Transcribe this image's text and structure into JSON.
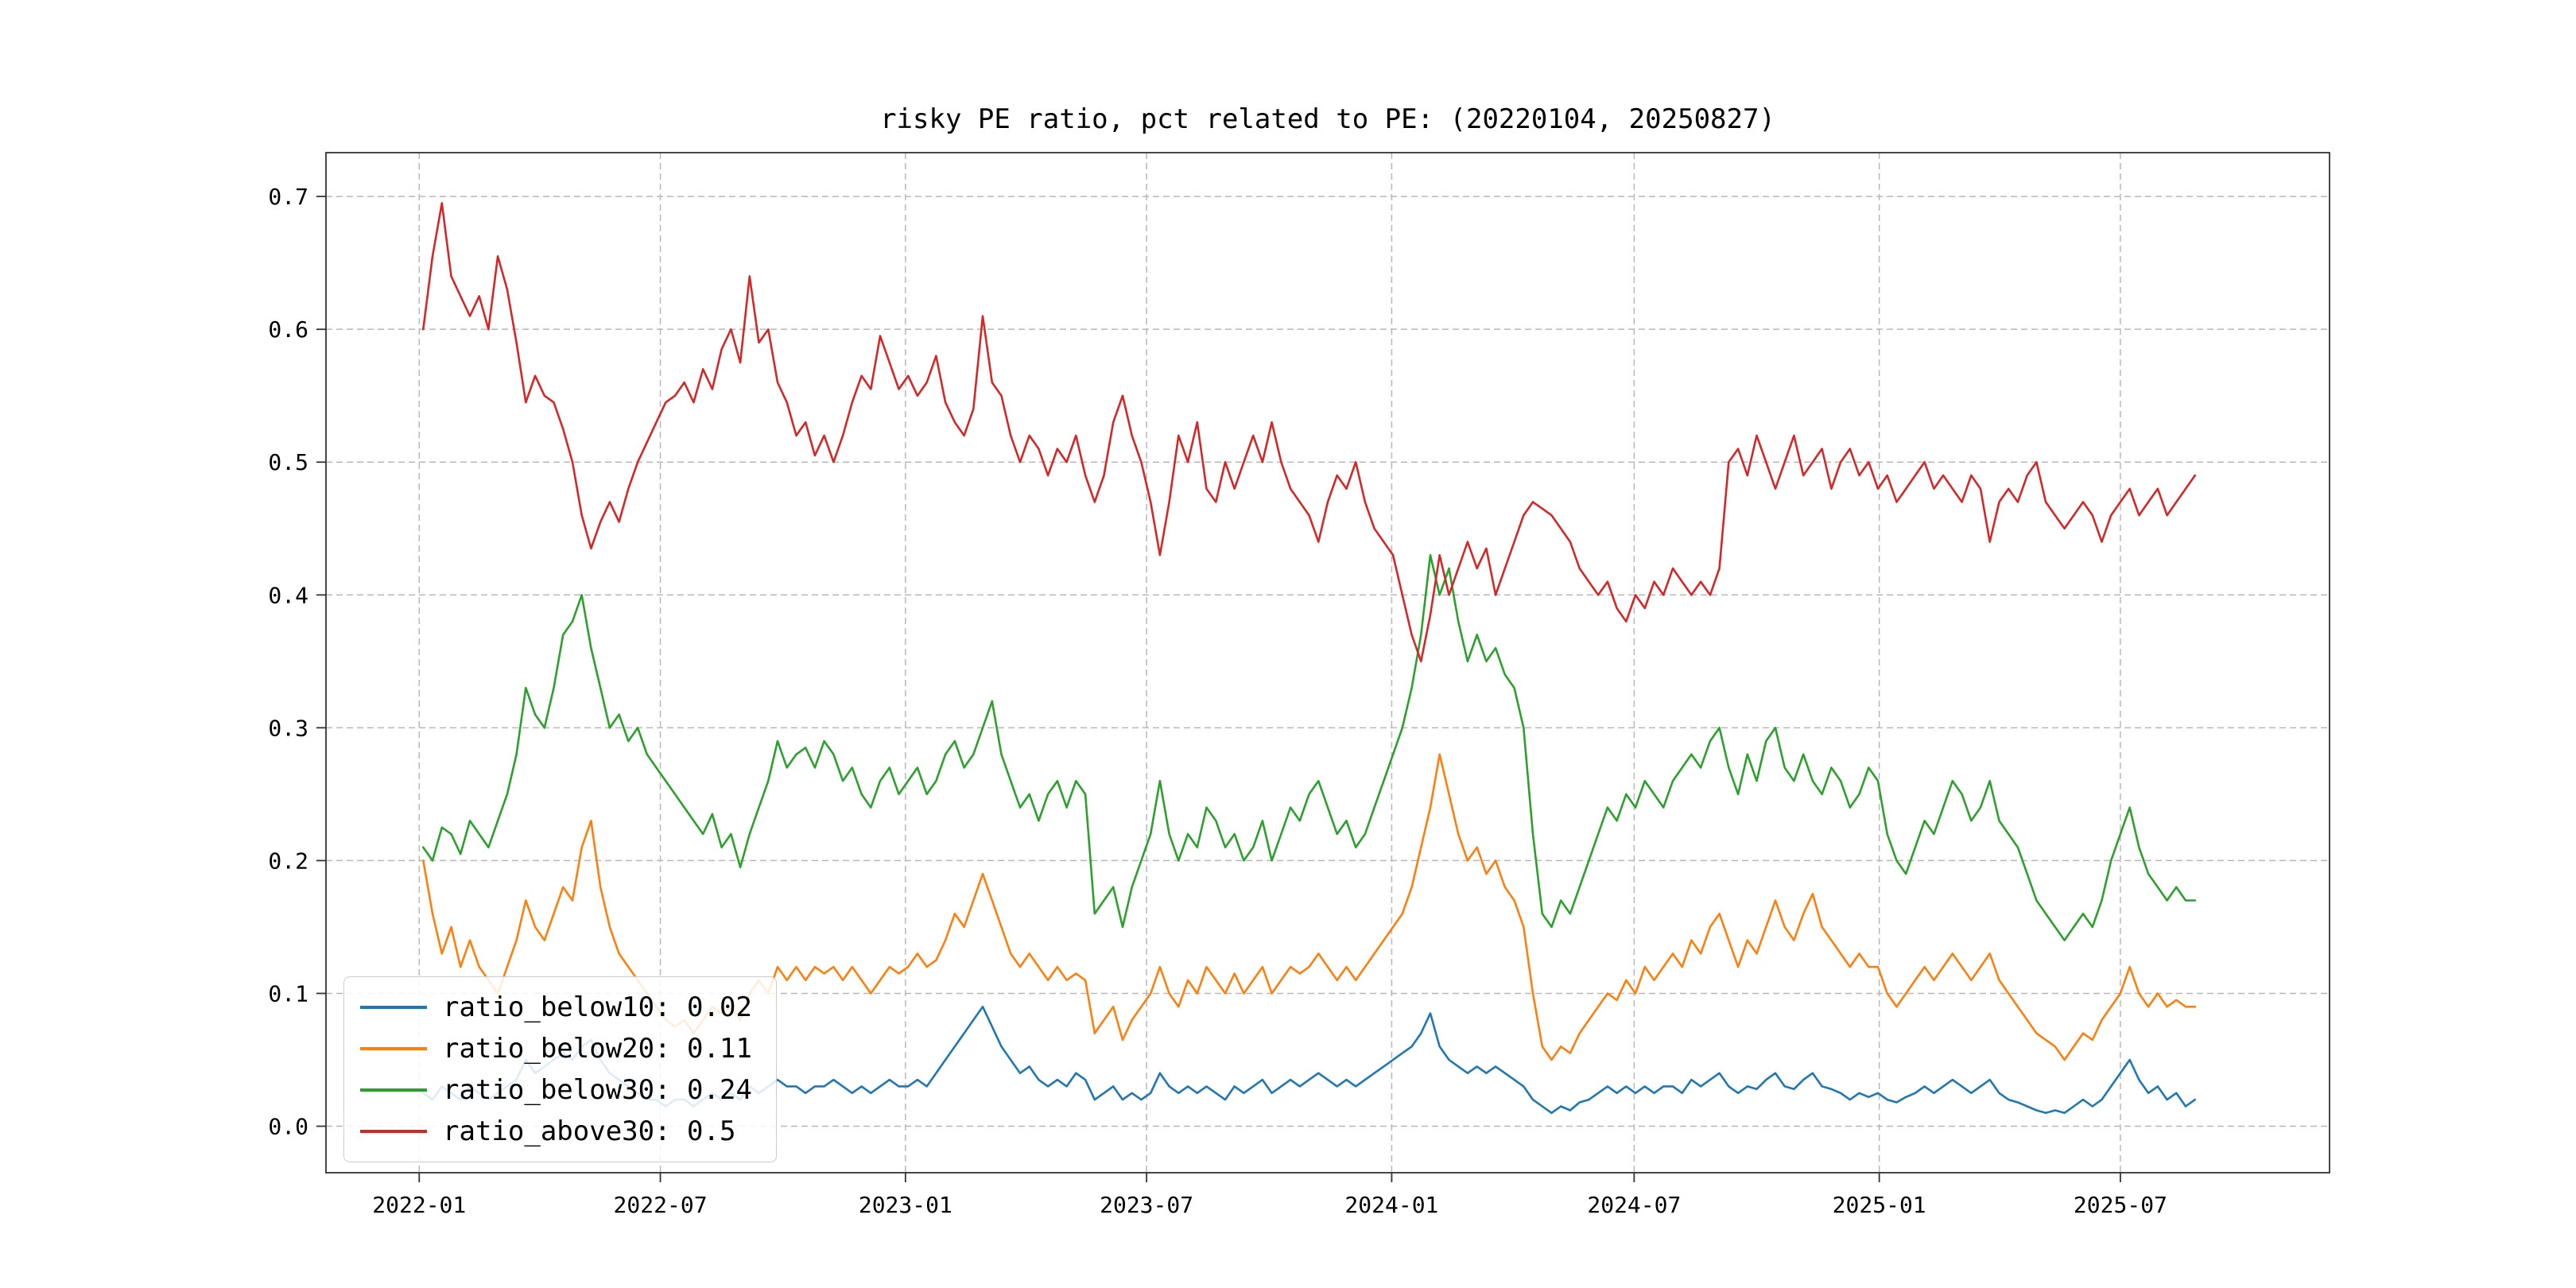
{
  "chart_data": {
    "type": "line",
    "title": "risky PE ratio, pct related to PE: (20220104, 20250827)",
    "grid": {
      "enabled": true,
      "dashed": true,
      "color": "#b8b8b8"
    },
    "legend_position": "lower-left",
    "x_unit": "days since 2022-01-01",
    "xlim": [
      -70,
      1434
    ],
    "ylim": [
      -0.035,
      0.733
    ],
    "y_ticks": [
      0.0,
      0.1,
      0.2,
      0.3,
      0.4,
      0.5,
      0.6,
      0.7
    ],
    "x_ticks": [
      {
        "day": 0,
        "label": "2022-01"
      },
      {
        "day": 181,
        "label": "2022-07"
      },
      {
        "day": 365,
        "label": "2023-01"
      },
      {
        "day": 546,
        "label": "2023-07"
      },
      {
        "day": 730,
        "label": "2024-01"
      },
      {
        "day": 912,
        "label": "2024-07"
      },
      {
        "day": 1096,
        "label": "2025-01"
      },
      {
        "day": 1277,
        "label": "2025-07"
      }
    ],
    "x": [
      3,
      10,
      17,
      24,
      31,
      38,
      45,
      52,
      59,
      66,
      73,
      80,
      87,
      94,
      101,
      108,
      115,
      122,
      129,
      136,
      143,
      150,
      157,
      164,
      171,
      178,
      185,
      192,
      199,
      206,
      213,
      220,
      227,
      234,
      241,
      248,
      255,
      262,
      269,
      276,
      283,
      290,
      297,
      304,
      311,
      318,
      325,
      332,
      339,
      346,
      353,
      360,
      367,
      374,
      381,
      388,
      395,
      402,
      409,
      416,
      423,
      430,
      437,
      444,
      451,
      458,
      465,
      472,
      479,
      486,
      493,
      500,
      507,
      514,
      521,
      528,
      535,
      542,
      549,
      556,
      563,
      570,
      577,
      584,
      591,
      598,
      605,
      612,
      619,
      626,
      633,
      640,
      647,
      654,
      661,
      668,
      675,
      682,
      689,
      696,
      703,
      710,
      717,
      724,
      731,
      738,
      745,
      752,
      759,
      766,
      773,
      780,
      787,
      794,
      801,
      808,
      815,
      822,
      829,
      836,
      843,
      850,
      857,
      864,
      871,
      878,
      885,
      892,
      899,
      906,
      913,
      920,
      927,
      934,
      941,
      948,
      955,
      962,
      969,
      976,
      983,
      990,
      997,
      1004,
      1011,
      1018,
      1025,
      1032,
      1039,
      1046,
      1053,
      1060,
      1067,
      1074,
      1081,
      1088,
      1095,
      1102,
      1109,
      1116,
      1123,
      1130,
      1137,
      1144,
      1151,
      1158,
      1165,
      1172,
      1179,
      1186,
      1193,
      1200,
      1207,
      1214,
      1221,
      1228,
      1235,
      1242,
      1249,
      1256,
      1263,
      1270,
      1277,
      1284,
      1291,
      1298,
      1305,
      1312,
      1319,
      1326,
      1333
    ],
    "series": [
      {
        "name": "ratio_below10",
        "legend_label": "ratio_below10: 0.02",
        "color": "#1f77b4",
        "values": [
          0.025,
          0.02,
          0.03,
          0.025,
          0.02,
          0.03,
          0.025,
          0.02,
          0.025,
          0.03,
          0.035,
          0.05,
          0.04,
          0.045,
          0.05,
          0.055,
          0.05,
          0.06,
          0.065,
          0.05,
          0.04,
          0.035,
          0.03,
          0.025,
          0.02,
          0.02,
          0.015,
          0.02,
          0.02,
          0.015,
          0.02,
          0.025,
          0.02,
          0.025,
          0.02,
          0.03,
          0.025,
          0.03,
          0.035,
          0.03,
          0.03,
          0.025,
          0.03,
          0.03,
          0.035,
          0.03,
          0.025,
          0.03,
          0.025,
          0.03,
          0.035,
          0.03,
          0.03,
          0.035,
          0.03,
          0.04,
          0.05,
          0.06,
          0.07,
          0.08,
          0.09,
          0.075,
          0.06,
          0.05,
          0.04,
          0.045,
          0.035,
          0.03,
          0.035,
          0.03,
          0.04,
          0.035,
          0.02,
          0.025,
          0.03,
          0.02,
          0.025,
          0.02,
          0.025,
          0.04,
          0.03,
          0.025,
          0.03,
          0.025,
          0.03,
          0.025,
          0.02,
          0.03,
          0.025,
          0.03,
          0.035,
          0.025,
          0.03,
          0.035,
          0.03,
          0.035,
          0.04,
          0.035,
          0.03,
          0.035,
          0.03,
          0.035,
          0.04,
          0.045,
          0.05,
          0.055,
          0.06,
          0.07,
          0.085,
          0.06,
          0.05,
          0.045,
          0.04,
          0.045,
          0.04,
          0.045,
          0.04,
          0.035,
          0.03,
          0.02,
          0.015,
          0.01,
          0.015,
          0.012,
          0.018,
          0.02,
          0.025,
          0.03,
          0.025,
          0.03,
          0.025,
          0.03,
          0.025,
          0.03,
          0.03,
          0.025,
          0.035,
          0.03,
          0.035,
          0.04,
          0.03,
          0.025,
          0.03,
          0.028,
          0.035,
          0.04,
          0.03,
          0.028,
          0.035,
          0.04,
          0.03,
          0.028,
          0.025,
          0.02,
          0.025,
          0.022,
          0.025,
          0.02,
          0.018,
          0.022,
          0.025,
          0.03,
          0.025,
          0.03,
          0.035,
          0.03,
          0.025,
          0.03,
          0.035,
          0.025,
          0.02,
          0.018,
          0.015,
          0.012,
          0.01,
          0.012,
          0.01,
          0.015,
          0.02,
          0.015,
          0.02,
          0.03,
          0.04,
          0.05,
          0.035,
          0.025,
          0.03,
          0.02,
          0.025,
          0.015,
          0.02
        ]
      },
      {
        "name": "ratio_below20",
        "legend_label": "ratio_below20: 0.11",
        "color": "#ff7f0e",
        "values": [
          0.2,
          0.16,
          0.13,
          0.15,
          0.12,
          0.14,
          0.12,
          0.11,
          0.1,
          0.12,
          0.14,
          0.17,
          0.15,
          0.14,
          0.16,
          0.18,
          0.17,
          0.21,
          0.23,
          0.18,
          0.15,
          0.13,
          0.12,
          0.11,
          0.1,
          0.09,
          0.08,
          0.075,
          0.08,
          0.07,
          0.08,
          0.09,
          0.085,
          0.09,
          0.08,
          0.1,
          0.11,
          0.1,
          0.12,
          0.11,
          0.12,
          0.11,
          0.12,
          0.115,
          0.12,
          0.11,
          0.12,
          0.11,
          0.1,
          0.11,
          0.12,
          0.115,
          0.12,
          0.13,
          0.12,
          0.125,
          0.14,
          0.16,
          0.15,
          0.17,
          0.19,
          0.17,
          0.15,
          0.13,
          0.12,
          0.13,
          0.12,
          0.11,
          0.12,
          0.11,
          0.115,
          0.11,
          0.07,
          0.08,
          0.09,
          0.065,
          0.08,
          0.09,
          0.1,
          0.12,
          0.1,
          0.09,
          0.11,
          0.1,
          0.12,
          0.11,
          0.1,
          0.115,
          0.1,
          0.11,
          0.12,
          0.1,
          0.11,
          0.12,
          0.115,
          0.12,
          0.13,
          0.12,
          0.11,
          0.12,
          0.11,
          0.12,
          0.13,
          0.14,
          0.15,
          0.16,
          0.18,
          0.21,
          0.24,
          0.28,
          0.25,
          0.22,
          0.2,
          0.21,
          0.19,
          0.2,
          0.18,
          0.17,
          0.15,
          0.1,
          0.06,
          0.05,
          0.06,
          0.055,
          0.07,
          0.08,
          0.09,
          0.1,
          0.095,
          0.11,
          0.1,
          0.12,
          0.11,
          0.12,
          0.13,
          0.12,
          0.14,
          0.13,
          0.15,
          0.16,
          0.14,
          0.12,
          0.14,
          0.13,
          0.15,
          0.17,
          0.15,
          0.14,
          0.16,
          0.175,
          0.15,
          0.14,
          0.13,
          0.12,
          0.13,
          0.12,
          0.12,
          0.1,
          0.09,
          0.1,
          0.11,
          0.12,
          0.11,
          0.12,
          0.13,
          0.12,
          0.11,
          0.12,
          0.13,
          0.11,
          0.1,
          0.09,
          0.08,
          0.07,
          0.065,
          0.06,
          0.05,
          0.06,
          0.07,
          0.065,
          0.08,
          0.09,
          0.1,
          0.12,
          0.1,
          0.09,
          0.1,
          0.09,
          0.095,
          0.09,
          0.09
        ]
      },
      {
        "name": "ratio_below30",
        "legend_label": "ratio_below30: 0.24",
        "color": "#2ca02c",
        "values": [
          0.21,
          0.2,
          0.225,
          0.22,
          0.205,
          0.23,
          0.22,
          0.21,
          0.23,
          0.25,
          0.28,
          0.33,
          0.31,
          0.3,
          0.33,
          0.37,
          0.38,
          0.4,
          0.36,
          0.33,
          0.3,
          0.31,
          0.29,
          0.3,
          0.28,
          0.27,
          0.26,
          0.25,
          0.24,
          0.23,
          0.22,
          0.235,
          0.21,
          0.22,
          0.195,
          0.22,
          0.24,
          0.26,
          0.29,
          0.27,
          0.28,
          0.285,
          0.27,
          0.29,
          0.28,
          0.26,
          0.27,
          0.25,
          0.24,
          0.26,
          0.27,
          0.25,
          0.26,
          0.27,
          0.25,
          0.26,
          0.28,
          0.29,
          0.27,
          0.28,
          0.3,
          0.32,
          0.28,
          0.26,
          0.24,
          0.25,
          0.23,
          0.25,
          0.26,
          0.24,
          0.26,
          0.25,
          0.16,
          0.17,
          0.18,
          0.15,
          0.18,
          0.2,
          0.22,
          0.26,
          0.22,
          0.2,
          0.22,
          0.21,
          0.24,
          0.23,
          0.21,
          0.22,
          0.2,
          0.21,
          0.23,
          0.2,
          0.22,
          0.24,
          0.23,
          0.25,
          0.26,
          0.24,
          0.22,
          0.23,
          0.21,
          0.22,
          0.24,
          0.26,
          0.28,
          0.3,
          0.33,
          0.37,
          0.43,
          0.4,
          0.42,
          0.38,
          0.35,
          0.37,
          0.35,
          0.36,
          0.34,
          0.33,
          0.3,
          0.22,
          0.16,
          0.15,
          0.17,
          0.16,
          0.18,
          0.2,
          0.22,
          0.24,
          0.23,
          0.25,
          0.24,
          0.26,
          0.25,
          0.24,
          0.26,
          0.27,
          0.28,
          0.27,
          0.29,
          0.3,
          0.27,
          0.25,
          0.28,
          0.26,
          0.29,
          0.3,
          0.27,
          0.26,
          0.28,
          0.26,
          0.25,
          0.27,
          0.26,
          0.24,
          0.25,
          0.27,
          0.26,
          0.22,
          0.2,
          0.19,
          0.21,
          0.23,
          0.22,
          0.24,
          0.26,
          0.25,
          0.23,
          0.24,
          0.26,
          0.23,
          0.22,
          0.21,
          0.19,
          0.17,
          0.16,
          0.15,
          0.14,
          0.15,
          0.16,
          0.15,
          0.17,
          0.2,
          0.22,
          0.24,
          0.21,
          0.19,
          0.18,
          0.17,
          0.18,
          0.17,
          0.17
        ]
      },
      {
        "name": "ratio_above30",
        "legend_label": "ratio_above30: 0.5",
        "color": "#d62728",
        "values": [
          0.6,
          0.655,
          0.695,
          0.64,
          0.625,
          0.61,
          0.625,
          0.6,
          0.655,
          0.63,
          0.59,
          0.545,
          0.565,
          0.55,
          0.545,
          0.525,
          0.5,
          0.46,
          0.435,
          0.455,
          0.47,
          0.455,
          0.48,
          0.5,
          0.515,
          0.53,
          0.545,
          0.55,
          0.56,
          0.545,
          0.57,
          0.555,
          0.585,
          0.6,
          0.575,
          0.64,
          0.59,
          0.6,
          0.56,
          0.545,
          0.52,
          0.53,
          0.505,
          0.52,
          0.5,
          0.52,
          0.545,
          0.565,
          0.555,
          0.595,
          0.575,
          0.555,
          0.565,
          0.55,
          0.56,
          0.58,
          0.545,
          0.53,
          0.52,
          0.54,
          0.61,
          0.56,
          0.55,
          0.52,
          0.5,
          0.52,
          0.51,
          0.49,
          0.51,
          0.5,
          0.52,
          0.49,
          0.47,
          0.49,
          0.53,
          0.55,
          0.52,
          0.5,
          0.47,
          0.43,
          0.47,
          0.52,
          0.5,
          0.53,
          0.48,
          0.47,
          0.5,
          0.48,
          0.5,
          0.52,
          0.5,
          0.53,
          0.5,
          0.48,
          0.47,
          0.46,
          0.44,
          0.47,
          0.49,
          0.48,
          0.5,
          0.47,
          0.45,
          0.44,
          0.43,
          0.4,
          0.37,
          0.35,
          0.385,
          0.43,
          0.4,
          0.42,
          0.44,
          0.42,
          0.435,
          0.4,
          0.42,
          0.44,
          0.46,
          0.47,
          0.465,
          0.46,
          0.45,
          0.44,
          0.42,
          0.41,
          0.4,
          0.41,
          0.39,
          0.38,
          0.4,
          0.39,
          0.41,
          0.4,
          0.42,
          0.41,
          0.4,
          0.41,
          0.4,
          0.42,
          0.5,
          0.51,
          0.49,
          0.52,
          0.5,
          0.48,
          0.5,
          0.52,
          0.49,
          0.5,
          0.51,
          0.48,
          0.5,
          0.51,
          0.49,
          0.5,
          0.48,
          0.49,
          0.47,
          0.48,
          0.49,
          0.5,
          0.48,
          0.49,
          0.48,
          0.47,
          0.49,
          0.48,
          0.44,
          0.47,
          0.48,
          0.47,
          0.49,
          0.5,
          0.47,
          0.46,
          0.45,
          0.46,
          0.47,
          0.46,
          0.44,
          0.46,
          0.47,
          0.48,
          0.46,
          0.47,
          0.48,
          0.46,
          0.47,
          0.48,
          0.49
        ]
      }
    ]
  }
}
